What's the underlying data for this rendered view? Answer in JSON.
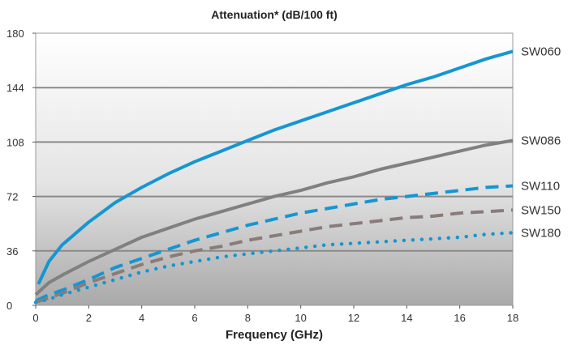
{
  "chart_data": {
    "type": "line",
    "title": "Attenuation* (dB/100 ft)",
    "xlabel": "Frequency (GHz)",
    "ylabel": "",
    "xlim": [
      0,
      18
    ],
    "ylim": [
      0,
      180
    ],
    "x_ticks": [
      "0",
      "2",
      "4",
      "6",
      "8",
      "10",
      "12",
      "14",
      "16",
      "18"
    ],
    "y_ticks": [
      "0",
      "36",
      "72",
      "108",
      "144",
      "180"
    ],
    "grid": "horizontal",
    "legend": "series labels at right end of lines",
    "series": [
      {
        "name": "SW060",
        "color": "#1596d2",
        "style": "solid",
        "points": [
          [
            0.1,
            14
          ],
          [
            0.5,
            29
          ],
          [
            1,
            40
          ],
          [
            2,
            55
          ],
          [
            3,
            68
          ],
          [
            4,
            78
          ],
          [
            5,
            87
          ],
          [
            6,
            95
          ],
          [
            7,
            102
          ],
          [
            8,
            109
          ],
          [
            9,
            116
          ],
          [
            10,
            122
          ],
          [
            11,
            128
          ],
          [
            12,
            134
          ],
          [
            13,
            140
          ],
          [
            14,
            146
          ],
          [
            15,
            151
          ],
          [
            16,
            157
          ],
          [
            17,
            163
          ],
          [
            18,
            168
          ]
        ]
      },
      {
        "name": "SW086",
        "color": "#808080",
        "style": "solid",
        "points": [
          [
            0,
            7
          ],
          [
            0.5,
            15
          ],
          [
            1,
            20
          ],
          [
            2,
            29
          ],
          [
            3,
            37
          ],
          [
            4,
            45
          ],
          [
            5,
            51
          ],
          [
            6,
            57
          ],
          [
            7,
            62
          ],
          [
            8,
            67
          ],
          [
            9,
            72
          ],
          [
            10,
            76
          ],
          [
            11,
            81
          ],
          [
            12,
            85
          ],
          [
            13,
            90
          ],
          [
            14,
            94
          ],
          [
            15,
            98
          ],
          [
            16,
            102
          ],
          [
            17,
            106
          ],
          [
            18,
            109
          ]
        ]
      },
      {
        "name": "SW110",
        "color": "#1596d2",
        "style": "dashed",
        "points": [
          [
            0,
            3
          ],
          [
            0.5,
            7
          ],
          [
            1,
            10
          ],
          [
            2,
            17
          ],
          [
            3,
            25
          ],
          [
            4,
            31
          ],
          [
            5,
            37
          ],
          [
            6,
            43
          ],
          [
            7,
            48
          ],
          [
            8,
            53
          ],
          [
            9,
            57
          ],
          [
            10,
            61
          ],
          [
            11,
            64
          ],
          [
            12,
            67
          ],
          [
            13,
            70
          ],
          [
            14,
            72
          ],
          [
            15,
            74
          ],
          [
            16,
            76
          ],
          [
            17,
            78
          ],
          [
            18,
            79
          ]
        ]
      },
      {
        "name": "SW150",
        "color": "#8a7b7a",
        "style": "dashed",
        "points": [
          [
            0,
            2
          ],
          [
            0.5,
            5
          ],
          [
            1,
            8
          ],
          [
            2,
            15
          ],
          [
            3,
            21
          ],
          [
            4,
            27
          ],
          [
            5,
            32
          ],
          [
            6,
            36
          ],
          [
            7,
            39
          ],
          [
            8,
            43
          ],
          [
            9,
            46
          ],
          [
            10,
            49
          ],
          [
            11,
            52
          ],
          [
            12,
            54
          ],
          [
            13,
            56
          ],
          [
            14,
            58
          ],
          [
            15,
            59
          ],
          [
            16,
            61
          ],
          [
            17,
            62
          ],
          [
            18,
            63
          ]
        ]
      },
      {
        "name": "SW180",
        "color": "#1596d2",
        "style": "dotted",
        "points": [
          [
            0,
            2
          ],
          [
            0.5,
            4
          ],
          [
            1,
            7
          ],
          [
            2,
            12
          ],
          [
            3,
            17
          ],
          [
            4,
            22
          ],
          [
            5,
            26
          ],
          [
            6,
            29
          ],
          [
            7,
            32
          ],
          [
            8,
            34
          ],
          [
            9,
            36
          ],
          [
            10,
            38
          ],
          [
            11,
            40
          ],
          [
            12,
            41
          ],
          [
            13,
            42
          ],
          [
            14,
            43
          ],
          [
            15,
            44
          ],
          [
            16,
            45
          ],
          [
            17,
            47
          ],
          [
            18,
            48
          ]
        ]
      }
    ]
  }
}
